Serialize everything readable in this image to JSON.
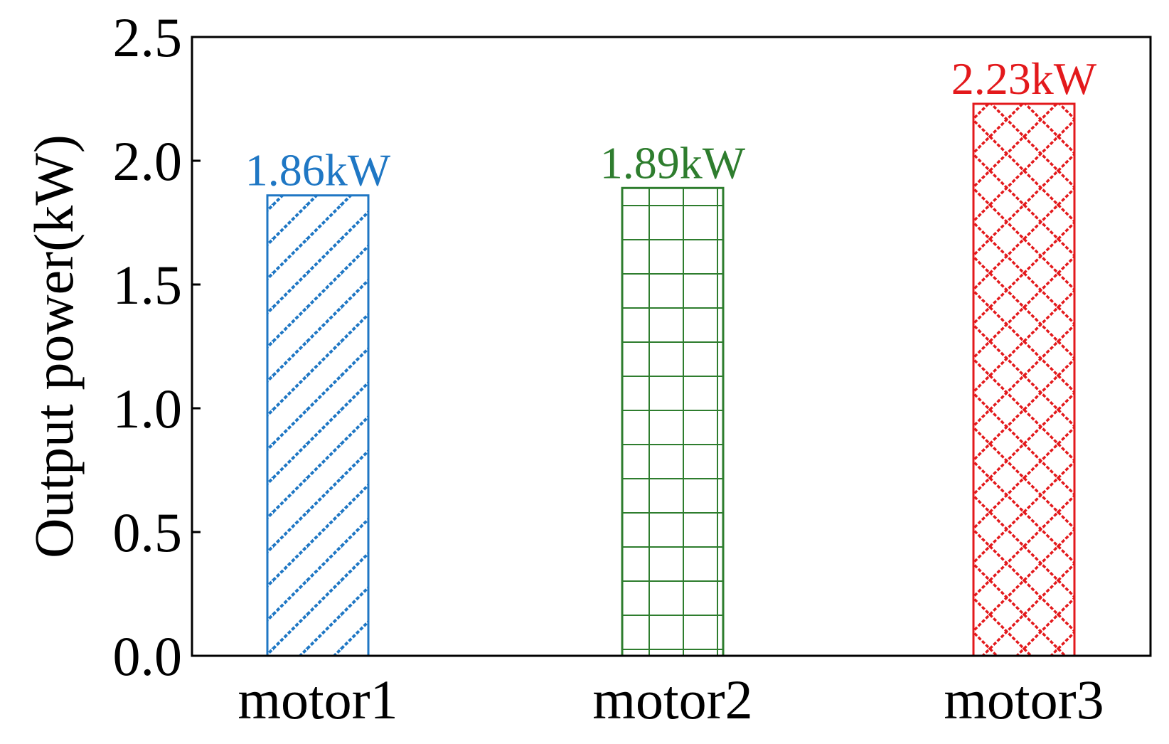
{
  "chart_data": {
    "type": "bar",
    "categories": [
      "motor1",
      "motor2",
      "motor3"
    ],
    "values": [
      1.86,
      1.89,
      2.23
    ],
    "data_labels": [
      "1.86kW",
      "1.89kW",
      "2.23kW"
    ],
    "bar_colors": [
      "#1f77c4",
      "#2e7d2e",
      "#e3191c"
    ],
    "bar_patterns": [
      "diagonal-hatch",
      "grid-hatch",
      "diamond-crosshatch"
    ],
    "title": "",
    "xlabel": "",
    "ylabel": "Output power(kW)",
    "ylim": [
      0,
      2.5
    ],
    "yticks": [
      "0.0",
      "0.5",
      "1.0",
      "1.5",
      "2.0",
      "2.5"
    ],
    "grid": false,
    "legend": false
  }
}
